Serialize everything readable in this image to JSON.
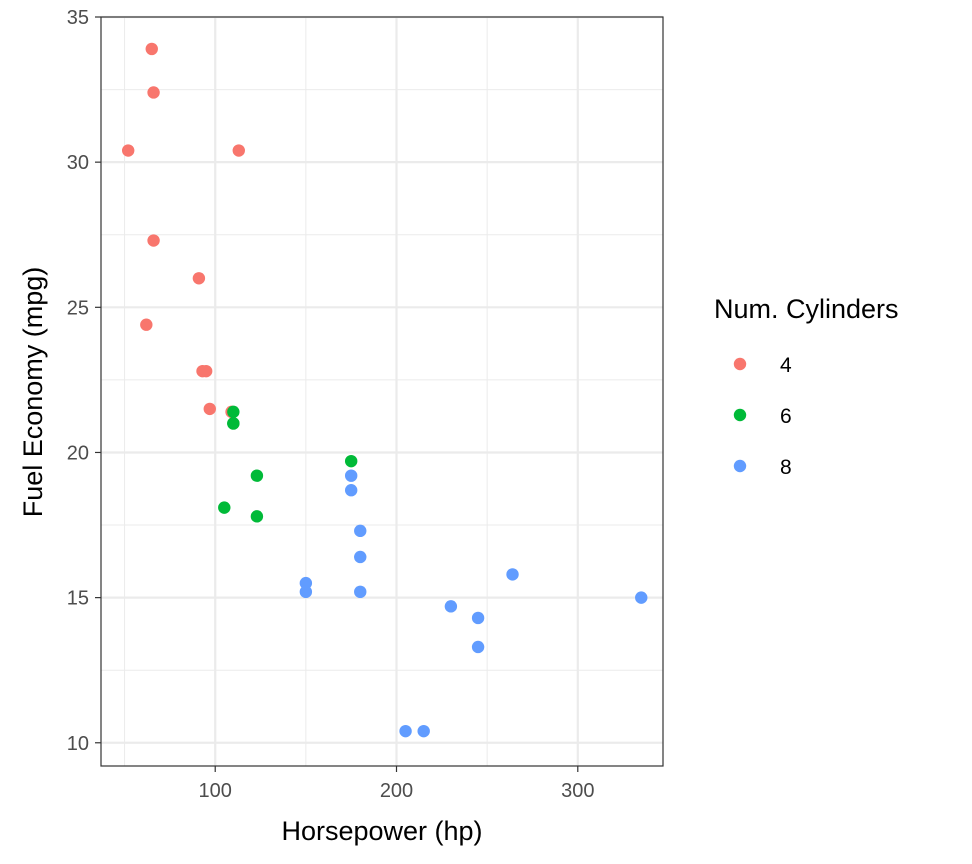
{
  "chart_data": {
    "type": "scatter",
    "title": "",
    "xlabel": "Horsepower (hp)",
    "ylabel": "Fuel Economy (mpg)",
    "xlim": [
      37,
      347
    ],
    "ylim": [
      9.2,
      35.0
    ],
    "x_ticks": [
      100,
      200,
      300
    ],
    "x_tick_labels": [
      "100",
      "200",
      "300"
    ],
    "y_ticks": [
      10,
      15,
      20,
      25,
      30,
      35
    ],
    "y_tick_labels": [
      "10",
      "15",
      "20",
      "25",
      "30",
      "35"
    ],
    "grid": true,
    "legend": {
      "title": "Num. Cylinders",
      "position": "right"
    },
    "series": [
      {
        "name": "4",
        "color": "#f8766d",
        "points": [
          [
            93,
            22.8
          ],
          [
            62,
            24.4
          ],
          [
            95,
            22.8
          ],
          [
            66,
            32.4
          ],
          [
            52,
            30.4
          ],
          [
            65,
            33.9
          ],
          [
            97,
            21.5
          ],
          [
            66,
            27.3
          ],
          [
            91,
            26.0
          ],
          [
            113,
            30.4
          ],
          [
            109,
            21.4
          ]
        ]
      },
      {
        "name": "6",
        "color": "#00ba38",
        "points": [
          [
            110,
            21.0
          ],
          [
            110,
            21.0
          ],
          [
            110,
            21.4
          ],
          [
            105,
            18.1
          ],
          [
            123,
            19.2
          ],
          [
            123,
            17.8
          ],
          [
            175,
            19.7
          ]
        ]
      },
      {
        "name": "8",
        "color": "#619cff",
        "points": [
          [
            175,
            18.7
          ],
          [
            245,
            14.3
          ],
          [
            180,
            16.4
          ],
          [
            180,
            17.3
          ],
          [
            180,
            15.2
          ],
          [
            205,
            10.4
          ],
          [
            215,
            10.4
          ],
          [
            230,
            14.7
          ],
          [
            150,
            15.5
          ],
          [
            150,
            15.2
          ],
          [
            245,
            13.3
          ],
          [
            175,
            19.2
          ],
          [
            264,
            15.8
          ],
          [
            335,
            15.0
          ]
        ]
      }
    ]
  }
}
